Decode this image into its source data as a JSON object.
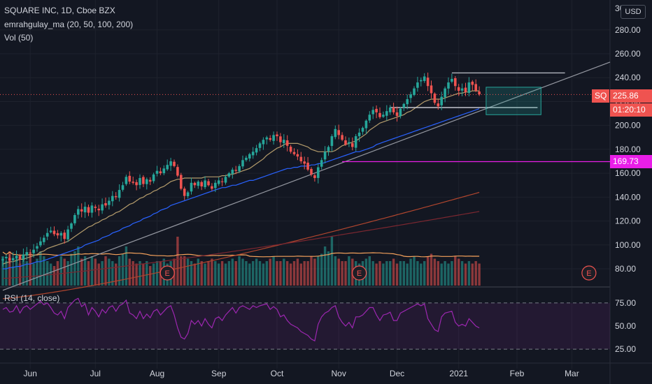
{
  "chart_data": {
    "type": "candlestick",
    "title": "SQUARE INC, 1D, Cboe BZX",
    "indicator_legend": "emrahgulay_ma (20, 50, 100, 200)",
    "volume_legend": "Vol (50)",
    "rsi_legend": "RSI (14, close)",
    "currency": "USD",
    "symbol": "SQ",
    "last_price": "225.86",
    "countdown": "01:20:10",
    "level": "169.73",
    "y_ticks": [
      "280.00",
      "260.00",
      "240.00",
      "220.00",
      "200.00",
      "180.00",
      "160.00",
      "140.00",
      "120.00",
      "100.00",
      "80.00"
    ],
    "y_top_partial": "30",
    "rsi_ticks": [
      "75.00",
      "50.00",
      "25.00"
    ],
    "x_ticks": [
      "Jun",
      "Jul",
      "Aug",
      "Sep",
      "Oct",
      "Nov",
      "Dec",
      "2021",
      "Feb",
      "Mar"
    ],
    "ylim": [
      66,
      305
    ],
    "rsi_bands": [
      25,
      75
    ],
    "close": [
      88,
      90,
      87,
      89,
      91,
      88,
      92,
      94,
      93,
      96,
      99,
      103,
      106,
      110,
      112,
      109,
      108,
      110,
      105,
      113,
      118,
      125,
      130,
      128,
      132,
      127,
      133,
      131,
      129,
      134,
      133,
      137,
      141,
      140,
      146,
      150,
      157,
      153,
      152,
      150,
      156,
      151,
      155,
      153,
      159,
      162,
      160,
      164,
      167,
      170,
      166,
      158,
      147,
      141,
      144,
      152,
      150,
      153,
      149,
      154,
      150,
      147,
      152,
      154,
      153,
      157,
      160,
      163,
      162,
      166,
      171,
      173,
      176,
      178,
      181,
      185,
      188,
      190,
      188,
      192,
      191,
      186,
      188,
      183,
      178,
      176,
      174,
      170,
      168,
      163,
      159,
      156,
      165,
      171,
      178,
      182,
      191,
      197,
      192,
      188,
      184,
      186,
      182,
      191,
      194,
      198,
      204,
      209,
      213,
      211,
      207,
      209,
      212,
      215,
      211,
      208,
      214,
      218,
      222,
      226,
      231,
      236,
      238,
      241,
      233,
      227,
      219,
      216,
      224,
      231,
      236,
      239,
      233,
      229,
      231,
      228,
      236,
      234,
      229,
      226
    ],
    "ma20": [
      84,
      85,
      86,
      86,
      87,
      88,
      88,
      89,
      90,
      91,
      92,
      94,
      95,
      97,
      98,
      99,
      100,
      101,
      102,
      103,
      105,
      107,
      109,
      111,
      113,
      115,
      116,
      118,
      119,
      121,
      122,
      124,
      125,
      127,
      128,
      130,
      132,
      134,
      135,
      137,
      139,
      140,
      142,
      143,
      145,
      146,
      148,
      149,
      151,
      153,
      154,
      155,
      155,
      156,
      156,
      156,
      156,
      156,
      156,
      157,
      157,
      157,
      157,
      157,
      158,
      158,
      159,
      159,
      160,
      161,
      162,
      163,
      164,
      166,
      168,
      170,
      172,
      175,
      177,
      179,
      181,
      182,
      184,
      185,
      185,
      185,
      185,
      184,
      183,
      182,
      180,
      179,
      178,
      178,
      178,
      178,
      178,
      179,
      181,
      183,
      184,
      185,
      186,
      187,
      189,
      191,
      193,
      196,
      198,
      200,
      202,
      203,
      204,
      205,
      206,
      207,
      208,
      209,
      211,
      212,
      214,
      216,
      218,
      220,
      221,
      222,
      222,
      222,
      222,
      223,
      224,
      225,
      226,
      227,
      227,
      228,
      228,
      229,
      229,
      229
    ],
    "ma50": [
      80,
      80,
      81,
      81,
      82,
      82,
      83,
      84,
      84,
      85,
      86,
      86,
      87,
      88,
      89,
      90,
      91,
      92,
      93,
      94,
      95,
      96,
      97,
      98,
      100,
      101,
      102,
      103,
      104,
      106,
      107,
      108,
      110,
      111,
      112,
      114,
      115,
      116,
      118,
      119,
      120,
      122,
      123,
      124,
      126,
      127,
      129,
      130,
      131,
      133,
      134,
      135,
      136,
      137,
      138,
      139,
      140,
      141,
      142,
      143,
      144,
      145,
      146,
      147,
      148,
      148,
      149,
      150,
      150,
      151,
      152,
      153,
      154,
      154,
      155,
      156,
      157,
      158,
      159,
      160,
      161,
      162,
      163,
      164,
      164,
      165,
      165,
      166,
      166,
      166,
      167,
      167,
      168,
      168,
      169,
      170,
      171,
      172,
      173,
      174,
      175,
      176,
      177,
      178,
      178,
      179,
      180,
      181,
      182,
      184,
      185,
      186,
      187,
      188,
      189,
      190,
      191,
      192,
      193,
      194,
      195,
      196,
      197,
      198,
      199,
      200,
      201,
      202,
      203,
      204,
      205,
      206,
      207,
      208,
      209,
      210,
      211,
      212,
      213,
      214
    ],
    "ma100_range": [
      72,
      128
    ],
    "ma200_range": [
      55,
      144
    ],
    "volume_rel": [
      0.6,
      0.5,
      0.7,
      0.4,
      0.55,
      0.45,
      0.6,
      0.5,
      0.65,
      0.45,
      0.55,
      0.7,
      0.6,
      0.5,
      0.45,
      0.4,
      0.5,
      0.6,
      0.55,
      0.5,
      0.65,
      0.7,
      0.8,
      0.55,
      0.6,
      0.5,
      0.6,
      0.55,
      0.45,
      0.5,
      0.6,
      0.55,
      0.5,
      0.45,
      0.6,
      0.65,
      0.8,
      0.55,
      0.5,
      0.45,
      0.5,
      0.45,
      0.5,
      0.4,
      0.45,
      0.5,
      0.5,
      0.55,
      0.45,
      0.5,
      0.55,
      1.0,
      0.6,
      0.6,
      0.55,
      0.5,
      0.45,
      0.55,
      0.5,
      0.45,
      0.5,
      0.55,
      0.5,
      0.45,
      0.5,
      0.45,
      0.5,
      0.55,
      0.5,
      0.6,
      0.55,
      0.5,
      0.45,
      0.5,
      0.55,
      0.5,
      0.45,
      0.5,
      0.55,
      0.6,
      0.5,
      0.5,
      0.55,
      0.5,
      0.45,
      0.5,
      0.55,
      0.45,
      0.5,
      0.5,
      0.6,
      0.55,
      0.6,
      0.65,
      0.8,
      0.7,
      1.0,
      0.6,
      0.55,
      0.5,
      0.5,
      0.6,
      0.55,
      0.5,
      0.45,
      0.5,
      0.55,
      0.6,
      0.5,
      0.45,
      0.5,
      0.45,
      0.5,
      0.5,
      0.55,
      0.45,
      0.5,
      0.5,
      0.45,
      0.55,
      0.6,
      0.5,
      0.45,
      0.5,
      0.6,
      0.65,
      0.55,
      0.5,
      0.45,
      0.5,
      0.45,
      0.5,
      0.6,
      0.55,
      0.5,
      0.45,
      0.5,
      0.45,
      0.5,
      0.45
    ],
    "rsi": [
      68,
      70,
      65,
      66,
      72,
      64,
      70,
      72,
      68,
      71,
      74,
      77,
      73,
      75,
      70,
      64,
      62,
      66,
      58,
      70,
      74,
      78,
      80,
      71,
      74,
      62,
      70,
      66,
      60,
      68,
      64,
      70,
      72,
      66,
      72,
      74,
      78,
      64,
      62,
      58,
      66,
      58,
      63,
      59,
      66,
      68,
      62,
      66,
      70,
      72,
      62,
      48,
      38,
      36,
      42,
      56,
      52,
      56,
      50,
      58,
      52,
      48,
      58,
      60,
      56,
      62,
      66,
      70,
      64,
      70,
      72,
      70,
      68,
      72,
      70,
      72,
      73,
      74,
      68,
      71,
      68,
      60,
      62,
      56,
      52,
      50,
      48,
      44,
      42,
      40,
      36,
      34,
      52,
      60,
      64,
      66,
      70,
      72,
      60,
      54,
      50,
      54,
      48,
      60,
      60,
      62,
      66,
      70,
      70,
      62,
      56,
      62,
      63,
      65,
      56,
      56,
      64,
      66,
      68,
      70,
      72,
      74,
      72,
      74,
      58,
      52,
      46,
      44,
      60,
      64,
      65,
      66,
      54,
      50,
      52,
      50,
      58,
      54,
      50,
      48
    ],
    "annotations": {
      "ascending_trendline": [
        {
          "bar": 0,
          "price": 62
        },
        {
          "bar": 140,
          "price": 213
        }
      ],
      "resistance_line": {
        "from_bar": 131,
        "to_bar": 164,
        "price": 244
      },
      "support_line": {
        "from_bar": 113,
        "to_bar": 156,
        "price": 215
      },
      "horizontal_level": 169.73,
      "projection_box": {
        "from_bar": 141,
        "to_bar": 157,
        "top": 232,
        "bottom": 209
      },
      "earnings_markers": [
        {
          "label": "E",
          "bar": 48
        },
        {
          "label": "E",
          "bar": 104
        },
        {
          "label": "E",
          "bar": 171
        }
      ]
    }
  },
  "colors": {
    "background": "#131722",
    "grid": "#1e222d",
    "up": "#26a69a",
    "down": "#ef5350",
    "ma20": "#b39b6b",
    "ma50": "#2962ff",
    "ma100": "#7b2730",
    "ma200": "#b2462e",
    "trendline": "#9598a1",
    "level": "#e91ee8",
    "rsi": "#9c27b0"
  }
}
